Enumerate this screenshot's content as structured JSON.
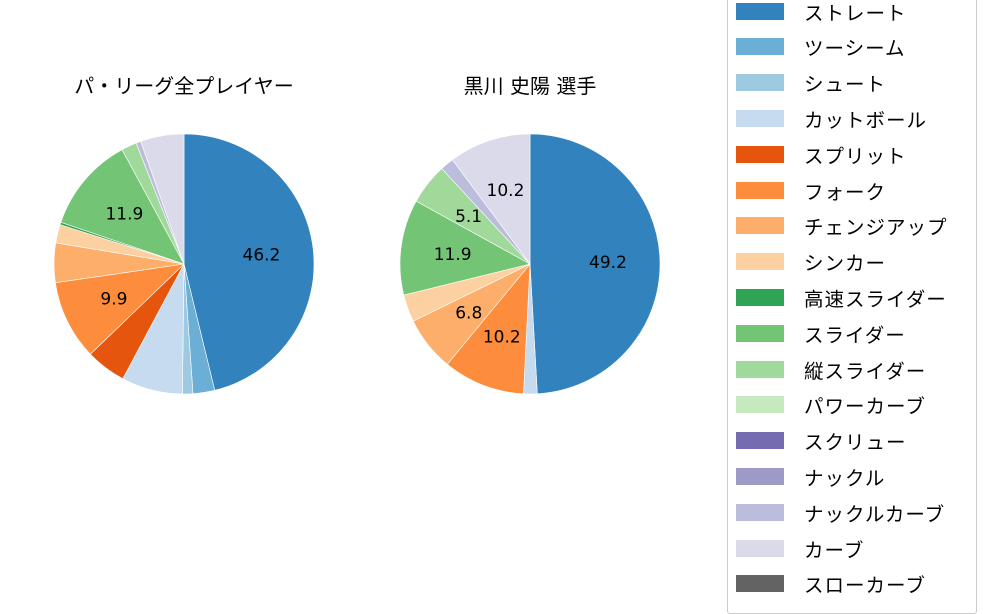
{
  "legend": {
    "items": [
      {
        "label": "ストレート",
        "color": "#3182bd"
      },
      {
        "label": "ツーシーム",
        "color": "#6baed6"
      },
      {
        "label": "シュート",
        "color": "#9ecae1"
      },
      {
        "label": "カットボール",
        "color": "#c6dbef"
      },
      {
        "label": "スプリット",
        "color": "#e6550d"
      },
      {
        "label": "フォーク",
        "color": "#fd8d3c"
      },
      {
        "label": "チェンジアップ",
        "color": "#fdae6b"
      },
      {
        "label": "シンカー",
        "color": "#fdd0a2"
      },
      {
        "label": "高速スライダー",
        "color": "#31a354"
      },
      {
        "label": "スライダー",
        "color": "#74c476"
      },
      {
        "label": "縦スライダー",
        "color": "#a1d99b"
      },
      {
        "label": "パワーカーブ",
        "color": "#c7e9c0"
      },
      {
        "label": "スクリュー",
        "color": "#756bb1"
      },
      {
        "label": "ナックル",
        "color": "#9e9ac8"
      },
      {
        "label": "ナックルカーブ",
        "color": "#bcbddc"
      },
      {
        "label": "カーブ",
        "color": "#dadaeb"
      },
      {
        "label": "スローカーブ",
        "color": "#636363"
      }
    ]
  },
  "chart_data": [
    {
      "type": "pie",
      "title": "パ・リーグ全プレイヤー",
      "start_angle": 90,
      "direction": "clockwise",
      "categories": [
        "ストレート",
        "ツーシーム",
        "シュート",
        "カットボール",
        "スプリット",
        "フォーク",
        "チェンジアップ",
        "シンカー",
        "高速スライダー",
        "スライダー",
        "縦スライダー",
        "パワーカーブ",
        "スクリュー",
        "ナックル",
        "ナックルカーブ",
        "カーブ",
        "スローカーブ"
      ],
      "values": [
        46.2,
        2.7,
        1.3,
        7.6,
        5.0,
        9.9,
        4.9,
        2.3,
        0.3,
        11.9,
        1.9,
        0.0,
        0.0,
        0.0,
        0.6,
        5.4,
        0.0
      ],
      "labels_shown": {
        "ストレート": "46.2",
        "フォーク": "9.9",
        "スライダー": "11.9"
      },
      "center": [
        184,
        264
      ],
      "radius": 130
    },
    {
      "type": "pie",
      "title": "黒川 史陽  選手",
      "start_angle": 90,
      "direction": "clockwise",
      "categories": [
        "ストレート",
        "ツーシーム",
        "シュート",
        "カットボール",
        "スプリット",
        "フォーク",
        "チェンジアップ",
        "シンカー",
        "高速スライダー",
        "スライダー",
        "縦スライダー",
        "パワーカーブ",
        "スクリュー",
        "ナックル",
        "ナックルカーブ",
        "カーブ",
        "スローカーブ"
      ],
      "values": [
        49.2,
        0.0,
        0.0,
        1.7,
        0.0,
        10.2,
        6.8,
        3.4,
        0.0,
        11.9,
        5.1,
        0.0,
        0.0,
        0.0,
        1.7,
        10.2,
        0.0
      ],
      "labels_shown": {
        "ストレート": "49.2",
        "フォーク": "10.2",
        "チェンジアップ": "6.8",
        "スライダー": "11.9",
        "縦スライダー": "5.1",
        "カーブ": "10.2"
      },
      "center": [
        530,
        264
      ],
      "radius": 130
    }
  ]
}
